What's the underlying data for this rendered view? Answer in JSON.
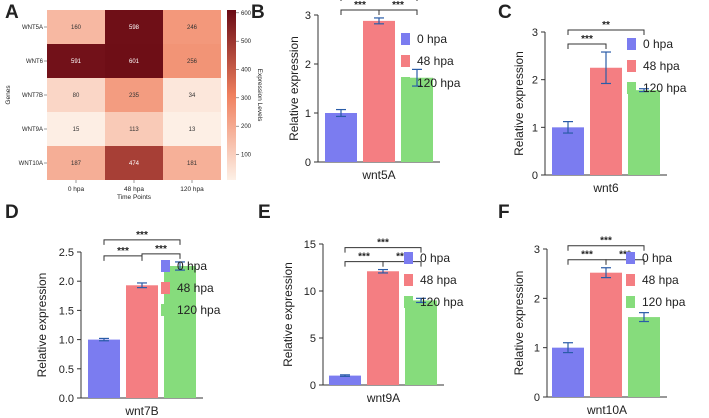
{
  "colors": {
    "bar_0hpa": "#7b7cf0",
    "bar_48hpa": "#f47e82",
    "bar_120hpa": "#86dc7c",
    "axis": "#333333",
    "heat_low": "#fdf0e6",
    "heat_mid": "#f0805e",
    "heat_high": "#6a0a14"
  },
  "chart_data": [
    {
      "panel": "A",
      "type": "heatmap",
      "rows": [
        "WNT5A",
        "WNT6",
        "WNT7B",
        "WNT9A",
        "WNT10A"
      ],
      "columns": [
        "0 hpa",
        "48 hpa",
        "120 hpa"
      ],
      "values": [
        [
          160,
          598,
          246
        ],
        [
          591,
          601,
          256
        ],
        [
          80,
          235,
          34
        ],
        [
          15,
          113,
          13
        ],
        [
          187,
          474,
          181
        ]
      ],
      "xlabel": "Time Points",
      "ylabel": "Genes",
      "colorbar_label": "Expression Levels",
      "colorbar_ticks": [
        100,
        200,
        300,
        400,
        500,
        600
      ],
      "vmin": 10,
      "vmax": 610
    },
    {
      "panel": "B",
      "type": "bar",
      "xlabel": "wnt5A",
      "ylabel": "Relative expression",
      "ylim": [
        0,
        3
      ],
      "yticks": [
        0,
        1,
        2,
        3
      ],
      "categories": [
        "0 hpa",
        "48 hpa",
        "120 hpa"
      ],
      "values": [
        1.0,
        2.88,
        1.72
      ],
      "errors": [
        0.07,
        0.06,
        0.17
      ],
      "significance": [
        {
          "from": 1,
          "to": 2,
          "label": "***"
        },
        {
          "from": 2,
          "to": 3,
          "label": "***"
        },
        {
          "from": 1,
          "to": 3,
          "label": "***"
        }
      ]
    },
    {
      "panel": "C",
      "type": "bar",
      "xlabel": "wnt6",
      "ylabel": "Relative expression",
      "ylim": [
        0,
        3
      ],
      "yticks": [
        0,
        1,
        2,
        3
      ],
      "categories": [
        "0 hpa",
        "48 hpa",
        "120 hpa"
      ],
      "values": [
        1.0,
        2.25,
        1.78
      ],
      "errors": [
        0.12,
        0.33,
        0.03
      ],
      "significance": [
        {
          "from": 1,
          "to": 2,
          "label": "***"
        },
        {
          "from": 1,
          "to": 3,
          "label": "**"
        }
      ]
    },
    {
      "panel": "D",
      "type": "bar",
      "xlabel": "wnt7B",
      "ylabel": "Relative expression",
      "ylim": [
        0,
        2.5
      ],
      "yticks": [
        0.0,
        0.5,
        1.0,
        1.5,
        2.0,
        2.5
      ],
      "categories": [
        "0 hpa",
        "48 hpa",
        "120 hpa"
      ],
      "values": [
        1.0,
        1.93,
        2.26
      ],
      "errors": [
        0.02,
        0.04,
        0.07
      ],
      "significance": [
        {
          "from": 1,
          "to": 2,
          "label": "***"
        },
        {
          "from": 2,
          "to": 3,
          "label": "***"
        },
        {
          "from": 1,
          "to": 3,
          "label": "***"
        }
      ]
    },
    {
      "panel": "E",
      "type": "bar",
      "xlabel": "wnt9A",
      "ylabel": "Relative expression",
      "ylim": [
        0,
        15
      ],
      "yticks": [
        0,
        5,
        10,
        15
      ],
      "categories": [
        "0 hpa",
        "48 hpa",
        "120 hpa"
      ],
      "values": [
        1.0,
        12.1,
        9.0
      ],
      "errors": [
        0.08,
        0.18,
        0.22
      ],
      "significance": [
        {
          "from": 1,
          "to": 2,
          "label": "***"
        },
        {
          "from": 2,
          "to": 3,
          "label": "***"
        },
        {
          "from": 1,
          "to": 3,
          "label": "***"
        }
      ]
    },
    {
      "panel": "F",
      "type": "bar",
      "xlabel": "wnt10A",
      "ylabel": "Relative expression",
      "ylim": [
        0,
        3
      ],
      "yticks": [
        0,
        1,
        2,
        3
      ],
      "categories": [
        "0 hpa",
        "48 hpa",
        "120 hpa"
      ],
      "values": [
        1.0,
        2.52,
        1.62
      ],
      "errors": [
        0.1,
        0.1,
        0.09
      ],
      "significance": [
        {
          "from": 1,
          "to": 2,
          "label": "***"
        },
        {
          "from": 2,
          "to": 3,
          "label": "***"
        },
        {
          "from": 1,
          "to": 3,
          "label": "***"
        }
      ]
    }
  ]
}
